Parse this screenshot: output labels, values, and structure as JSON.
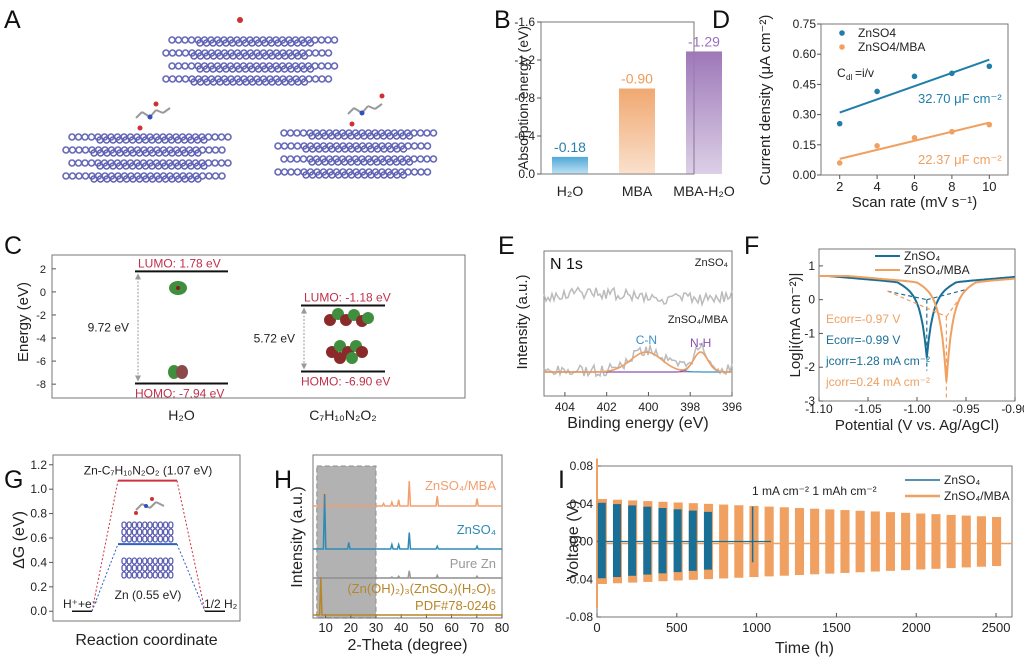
{
  "panel_letters": [
    "A",
    "B",
    "C",
    "D",
    "E",
    "F",
    "G",
    "H",
    "I"
  ],
  "chart_data": [
    {
      "id": "A",
      "type": "diagram",
      "description": "Zn slab adsorption models: H2O, MBA, MBA-H2O",
      "models": [
        "H2O",
        "MBA",
        "MBA-H2O"
      ]
    },
    {
      "id": "B",
      "type": "bar",
      "title": "",
      "xlabel": "",
      "ylabel": "Absorption energy (eV)",
      "ylim": [
        0.0,
        -1.6
      ],
      "yticks": [
        "-1.6",
        "-1.2",
        "-0.8",
        "-0.4",
        "0.0"
      ],
      "categories": [
        "H2O",
        "MBA",
        "MBA-H2O"
      ],
      "category_labels": [
        "H₂O",
        "MBA",
        "MBA-H₂O"
      ],
      "values": [
        -0.18,
        -0.9,
        -1.29
      ],
      "value_labels": [
        "-0.18",
        "-0.90",
        "-1.29"
      ],
      "colors": [
        "#4fa9d8",
        "#f0a870",
        "#9d78b8"
      ],
      "label_colors": [
        "#2a7fa8",
        "#ee9a5a",
        "#9a6fc0"
      ]
    },
    {
      "id": "C",
      "type": "diagram",
      "ylabel": "Energy (eV)",
      "ylim": [
        -9.2,
        3.2
      ],
      "yticks": [
        "2",
        "0",
        "-2",
        "-4",
        "-6",
        "-8"
      ],
      "molecules": [
        {
          "name": "H₂O",
          "lumo": 1.78,
          "homo": -7.94,
          "lumo_label": "LUMO: 1.78 eV",
          "homo_label": "HOMO: -7.94 eV",
          "gap_label": "9.72 eV"
        },
        {
          "name": "C₇H₁₀N₂O₂",
          "lumo": -1.18,
          "homo": -6.9,
          "lumo_label": "LUMO: -1.18 eV",
          "homo_label": "HOMO: -6.90 eV",
          "gap_label": "5.72 eV"
        }
      ],
      "label_color": "#c0304a"
    },
    {
      "id": "D",
      "type": "scatter",
      "xlabel": "Scan rate (mV s⁻¹)",
      "ylabel": "Current density (μA cm⁻²)",
      "xlim": [
        1,
        11
      ],
      "ylim": [
        0,
        0.75
      ],
      "xticks": [
        "2",
        "4",
        "6",
        "8",
        "10"
      ],
      "yticks": [
        "0.00",
        "0.15",
        "0.30",
        "0.45",
        "0.60",
        "0.75"
      ],
      "annotation": "Cdl=i/v",
      "series": [
        {
          "name": "ZnSO4",
          "color": "#1f7fa8",
          "x": [
            2,
            4,
            6,
            8,
            10
          ],
          "y": [
            0.255,
            0.415,
            0.49,
            0.505,
            0.54
          ],
          "fit": [
            0.31,
            0.573
          ],
          "slope_label": "32.70 μF cm⁻²"
        },
        {
          "name": "ZnSO4/MBA",
          "color": "#f0a060",
          "x": [
            2,
            4,
            6,
            8,
            10
          ],
          "y": [
            0.06,
            0.145,
            0.185,
            0.215,
            0.25
          ],
          "fit": [
            0.08,
            0.26
          ],
          "slope_label": "22.37 μF cm⁻²"
        }
      ]
    },
    {
      "id": "E",
      "type": "line",
      "title": "N 1s",
      "xlabel": "Binding energy (eV)",
      "ylabel": "Intensity (a.u.)",
      "xlim": [
        405,
        396
      ],
      "xticks": [
        "404",
        "402",
        "400",
        "398",
        "396"
      ],
      "series_labels": [
        "ZnSO₄",
        "ZnSO₄/MBA"
      ],
      "peaks": [
        {
          "name": "C-N",
          "center": 400.1,
          "color": "#3a8fc8"
        },
        {
          "name": "N-H",
          "center": 397.5,
          "color": "#8a50b0"
        }
      ]
    },
    {
      "id": "F",
      "type": "line",
      "xlabel": "Potential (V vs. Ag/AgCl)",
      "ylabel": "Log|i(mA cm⁻²)|",
      "xlim": [
        -1.1,
        -0.9
      ],
      "ylim": [
        -3,
        1.5
      ],
      "xticks": [
        "-1.10",
        "-1.05",
        "-1.00",
        "-0.95",
        "-0.90"
      ],
      "yticks": [
        "-3",
        "-2",
        "-1",
        "0",
        "1"
      ],
      "series": [
        {
          "name": "ZnSO₄",
          "color": "#1a6f96",
          "ecorr": -0.99,
          "jcorr": 1.28,
          "min_log": -1.9
        },
        {
          "name": "ZnSO₄/MBA",
          "color": "#f0a060",
          "ecorr": -0.97,
          "jcorr": 0.24,
          "min_log": -2.7
        }
      ],
      "annotations": [
        {
          "text": "Ecorr=-0.97 V",
          "color": "#f0a060"
        },
        {
          "text": "Ecorr=-0.99 V",
          "color": "#1a6f96"
        },
        {
          "text": "jcorr=1.28 mA cm⁻²",
          "color": "#1a6f96"
        },
        {
          "text": "jcorr=0.24 mA cm⁻²",
          "color": "#f0a060"
        }
      ]
    },
    {
      "id": "G",
      "type": "diagram",
      "xlabel": "Reaction coordinate",
      "ylabel": "ΔG (eV)",
      "ylim": [
        -0.08,
        1.28
      ],
      "yticks": [
        "0.0",
        "0.2",
        "0.4",
        "0.6",
        "0.8",
        "1.0",
        "1.2"
      ],
      "levels": [
        {
          "name": "Zn-C₇H₁₀N₂O₂ (1.07 eV)",
          "value": 1.07,
          "color": "#d03040"
        },
        {
          "name": "Zn (0.55 eV)",
          "value": 0.55,
          "color": "#3060c0"
        }
      ],
      "start_label": "H⁺+e⁻",
      "end_label": "1/2 H₂"
    },
    {
      "id": "H",
      "type": "line",
      "xlabel": "2-Theta (degree)",
      "ylabel": "Intensity (a.u.)",
      "xlim": [
        5,
        80
      ],
      "xticks": [
        "10",
        "20",
        "30",
        "40",
        "50",
        "60",
        "70",
        "80"
      ],
      "highlight_range": [
        6.5,
        30
      ],
      "series": [
        {
          "name": "ZnSO₄/MBA",
          "color": "#f2a070",
          "peaks": [
            [
              9.6,
              0.6
            ],
            [
              19.2,
              0.05
            ],
            [
              33,
              0.1
            ],
            [
              36.3,
              0.15
            ],
            [
              39,
              0.25
            ],
            [
              43.2,
              1.0
            ],
            [
              54.3,
              0.4
            ],
            [
              70.1,
              0.3
            ]
          ]
        },
        {
          "name": "ZnSO₄",
          "color": "#2f8bb5",
          "peaks": [
            [
              9.6,
              1.0
            ],
            [
              19.2,
              0.12
            ],
            [
              36.3,
              0.08
            ],
            [
              39,
              0.08
            ],
            [
              43.2,
              0.3
            ],
            [
              54.3,
              0.05
            ],
            [
              70.1,
              0.05
            ]
          ]
        },
        {
          "name": "Pure Zn",
          "color": "#999999",
          "peaks": [
            [
              36.3,
              0.05
            ],
            [
              39,
              0.1
            ],
            [
              43.2,
              0.4
            ],
            [
              54.3,
              0.15
            ],
            [
              70.1,
              0.1
            ]
          ]
        },
        {
          "name": "(Zn(OH)₂)₃(ZnSO₄)(H₂O)₅",
          "color": "#b8862a",
          "peaks": [
            [
              8.1,
              1.0
            ]
          ]
        }
      ],
      "reference_label": "PDF#78-0246"
    },
    {
      "id": "I",
      "type": "line",
      "xlabel": "Time (h)",
      "ylabel": "Voltage (V)",
      "xlim": [
        0,
        2600
      ],
      "ylim": [
        -0.08,
        0.08
      ],
      "xticks": [
        "0",
        "500",
        "1000",
        "1500",
        "2000",
        "2500"
      ],
      "yticks": [
        "0.08",
        "0.04",
        "0.00",
        "-0.04",
        "-0.08"
      ],
      "annotation": "1 mA cm⁻²  1 mAh cm⁻²",
      "series": [
        {
          "name": "ZnSO₄",
          "color": "#1a6f96",
          "end_time": 1090,
          "amplitude_start": 0.041,
          "amplitude_end": 0.03
        },
        {
          "name": "ZnSO₄/MBA",
          "color": "#f0a060",
          "end_time": 2600,
          "amplitude_start": 0.045,
          "amplitude_end": 0.025
        }
      ]
    }
  ]
}
